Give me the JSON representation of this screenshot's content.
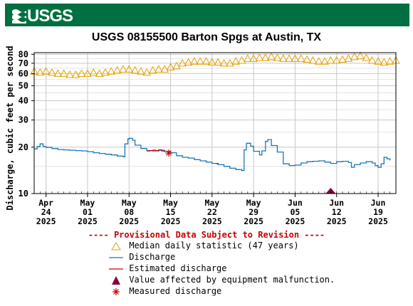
{
  "header": {
    "logo_text": "USGS"
  },
  "colors": {
    "banner": "#006f41",
    "median": "#e8a000",
    "discharge": "#1a78b4",
    "estimated": "#cc0000",
    "malfunction": "#800040",
    "measured": "#cc0000",
    "provisional": "#cc0000"
  },
  "chart_data": {
    "type": "line",
    "title": "USGS 08155500 Barton Spgs at Austin, TX",
    "ylabel": "Discharge, cubic feet per second",
    "xlabel": "",
    "y_scale": "log",
    "ylim": [
      10,
      82
    ],
    "y_ticks": [
      10,
      20,
      30,
      40,
      50,
      60,
      70,
      80
    ],
    "xlim": [
      "2025-04-22",
      "2025-06-22"
    ],
    "x_ticks": [
      {
        "date": "2025-04-24",
        "label": [
          "Apr",
          "24",
          "2025"
        ]
      },
      {
        "date": "2025-05-01",
        "label": [
          "May",
          "01",
          "2025"
        ]
      },
      {
        "date": "2025-05-08",
        "label": [
          "May",
          "08",
          "2025"
        ]
      },
      {
        "date": "2025-05-15",
        "label": [
          "May",
          "15",
          "2025"
        ]
      },
      {
        "date": "2025-05-22",
        "label": [
          "May",
          "22",
          "2025"
        ]
      },
      {
        "date": "2025-05-29",
        "label": [
          "May",
          "29",
          "2025"
        ]
      },
      {
        "date": "2025-06-05",
        "label": [
          "Jun",
          "05",
          "2025"
        ]
      },
      {
        "date": "2025-06-12",
        "label": [
          "Jun",
          "12",
          "2025"
        ]
      },
      {
        "date": "2025-06-19",
        "label": [
          "Jun",
          "19",
          "2025"
        ]
      }
    ],
    "grid": true,
    "series": [
      {
        "name": "Median daily statistic (47 years)",
        "marker": "triangle-open",
        "points": [
          [
            "2025-04-22",
            62
          ],
          [
            "2025-04-23",
            61
          ],
          [
            "2025-04-24",
            62
          ],
          [
            "2025-04-25",
            61
          ],
          [
            "2025-04-26",
            60
          ],
          [
            "2025-04-27",
            60
          ],
          [
            "2025-04-28",
            59
          ],
          [
            "2025-04-29",
            59
          ],
          [
            "2025-04-30",
            60
          ],
          [
            "2025-05-01",
            60
          ],
          [
            "2025-05-02",
            61
          ],
          [
            "2025-05-03",
            60
          ],
          [
            "2025-05-04",
            61
          ],
          [
            "2025-05-05",
            62
          ],
          [
            "2025-05-06",
            63
          ],
          [
            "2025-05-07",
            64
          ],
          [
            "2025-05-08",
            64
          ],
          [
            "2025-05-09",
            63
          ],
          [
            "2025-05-10",
            62
          ],
          [
            "2025-05-11",
            61
          ],
          [
            "2025-05-12",
            63
          ],
          [
            "2025-05-13",
            64
          ],
          [
            "2025-05-14",
            64
          ],
          [
            "2025-05-15",
            66
          ],
          [
            "2025-05-16",
            67
          ],
          [
            "2025-05-17",
            70
          ],
          [
            "2025-05-18",
            71
          ],
          [
            "2025-05-19",
            72
          ],
          [
            "2025-05-20",
            72
          ],
          [
            "2025-05-21",
            72
          ],
          [
            "2025-05-22",
            71
          ],
          [
            "2025-05-23",
            71
          ],
          [
            "2025-05-24",
            70
          ],
          [
            "2025-05-25",
            70
          ],
          [
            "2025-05-26",
            72
          ],
          [
            "2025-05-27",
            73
          ],
          [
            "2025-05-28",
            75
          ],
          [
            "2025-05-29",
            75
          ],
          [
            "2025-05-30",
            76
          ],
          [
            "2025-05-31",
            76
          ],
          [
            "2025-06-01",
            77
          ],
          [
            "2025-06-02",
            76
          ],
          [
            "2025-06-03",
            75
          ],
          [
            "2025-06-04",
            75
          ],
          [
            "2025-06-05",
            75
          ],
          [
            "2025-06-06",
            75
          ],
          [
            "2025-06-07",
            74
          ],
          [
            "2025-06-08",
            73
          ],
          [
            "2025-06-09",
            72
          ],
          [
            "2025-06-10",
            72
          ],
          [
            "2025-06-11",
            73
          ],
          [
            "2025-06-12",
            73
          ],
          [
            "2025-06-13",
            74
          ],
          [
            "2025-06-14",
            75
          ],
          [
            "2025-06-15",
            77
          ],
          [
            "2025-06-16",
            78
          ],
          [
            "2025-06-17",
            76
          ],
          [
            "2025-06-18",
            73
          ],
          [
            "2025-06-19",
            72
          ],
          [
            "2025-06-20",
            71
          ],
          [
            "2025-06-21",
            72
          ],
          [
            "2025-06-22",
            73
          ]
        ]
      },
      {
        "name": "Discharge",
        "marker": "line",
        "points": [
          [
            "2025-04-22",
            19.5
          ],
          [
            "2025-04-22.5",
            20.2
          ],
          [
            "2025-04-23",
            21.0
          ],
          [
            "2025-04-23.5",
            20.2
          ],
          [
            "2025-04-24",
            19.9
          ],
          [
            "2025-04-25",
            19.6
          ],
          [
            "2025-04-26",
            19.3
          ],
          [
            "2025-04-27",
            19.2
          ],
          [
            "2025-04-28",
            19.1
          ],
          [
            "2025-04-29",
            19.0
          ],
          [
            "2025-04-30",
            18.9
          ],
          [
            "2025-05-01",
            18.7
          ],
          [
            "2025-05-02",
            18.4
          ],
          [
            "2025-05-03",
            18.2
          ],
          [
            "2025-05-04",
            18.0
          ],
          [
            "2025-05-05",
            17.8
          ],
          [
            "2025-05-06",
            17.5
          ],
          [
            "2025-05-07",
            17.3
          ],
          [
            "2025-05-07.3",
            21.0
          ],
          [
            "2025-05-07.8",
            22.6
          ],
          [
            "2025-05-08",
            22.8
          ],
          [
            "2025-05-08.6",
            22.2
          ],
          [
            "2025-05-09",
            20.6
          ],
          [
            "2025-05-10",
            19.6
          ],
          [
            "2025-05-11",
            19.0
          ],
          [
            "2025-05-12",
            18.9
          ],
          [
            "2025-05-13",
            19.1
          ],
          [
            "2025-05-14",
            18.8
          ],
          [
            "2025-05-15",
            18.4
          ],
          [
            "2025-05-16",
            17.6
          ],
          [
            "2025-05-17",
            17.2
          ],
          [
            "2025-05-18",
            17.0
          ],
          [
            "2025-05-19",
            16.6
          ],
          [
            "2025-05-20",
            16.3
          ],
          [
            "2025-05-21",
            16.0
          ],
          [
            "2025-05-22",
            15.7
          ],
          [
            "2025-05-23",
            15.4
          ],
          [
            "2025-05-24",
            15.0
          ],
          [
            "2025-05-25",
            14.6
          ],
          [
            "2025-05-26",
            14.3
          ],
          [
            "2025-05-27",
            14.1
          ],
          [
            "2025-05-27.4",
            19.2
          ],
          [
            "2025-05-27.8",
            21.2
          ],
          [
            "2025-05-28.5",
            20.3
          ],
          [
            "2025-05-29",
            18.8
          ],
          [
            "2025-05-30",
            17.8
          ],
          [
            "2025-05-30.4",
            18.9
          ],
          [
            "2025-05-31",
            21.8
          ],
          [
            "2025-05-31.4",
            22.4
          ],
          [
            "2025-06-01",
            20.5
          ],
          [
            "2025-06-02",
            18.6
          ],
          [
            "2025-06-03",
            15.6
          ],
          [
            "2025-06-04",
            15.2
          ],
          [
            "2025-06-05",
            15.3
          ],
          [
            "2025-06-06",
            15.8
          ],
          [
            "2025-06-07",
            16.1
          ],
          [
            "2025-06-08",
            16.2
          ],
          [
            "2025-06-09",
            16.3
          ],
          [
            "2025-06-10",
            16.0
          ],
          [
            "2025-06-11",
            15.7
          ],
          [
            "2025-06-12",
            16.1
          ],
          [
            "2025-06-13",
            16.2
          ],
          [
            "2025-06-14",
            15.9
          ],
          [
            "2025-06-14.5",
            14.8
          ],
          [
            "2025-06-15",
            15.4
          ],
          [
            "2025-06-16",
            15.8
          ],
          [
            "2025-06-17",
            16.1
          ],
          [
            "2025-06-18",
            15.8
          ],
          [
            "2025-06-18.5",
            15.2
          ],
          [
            "2025-06-19",
            14.8
          ],
          [
            "2025-06-19.5",
            15.6
          ],
          [
            "2025-06-20",
            17.2
          ],
          [
            "2025-06-20.5",
            16.8
          ],
          [
            "2025-06-21",
            16.4
          ]
        ]
      },
      {
        "name": "Estimated discharge",
        "marker": "line",
        "points": [
          [
            "2025-05-11",
            18.9
          ],
          [
            "2025-05-11.5",
            19.0
          ],
          [
            "2025-05-12",
            19.1
          ],
          [
            "2025-05-12.5",
            19.0
          ],
          [
            "2025-05-13",
            19.2
          ],
          [
            "2025-05-13.5",
            18.9
          ],
          [
            "2025-05-14",
            18.6
          ],
          [
            "2025-05-22.6",
            15.7
          ],
          [
            "2025-05-23",
            15.5
          ]
        ]
      },
      {
        "name": "Value affected by equipment malfunction.",
        "marker": "triangle-filled",
        "points": [
          [
            "2025-06-11",
            10
          ]
        ]
      },
      {
        "name": "Measured discharge",
        "marker": "asterisk",
        "points": [
          [
            "2025-05-14.7",
            18.3
          ]
        ]
      }
    ],
    "provisional_note": "---- Provisional Data Subject to Revision ----"
  }
}
